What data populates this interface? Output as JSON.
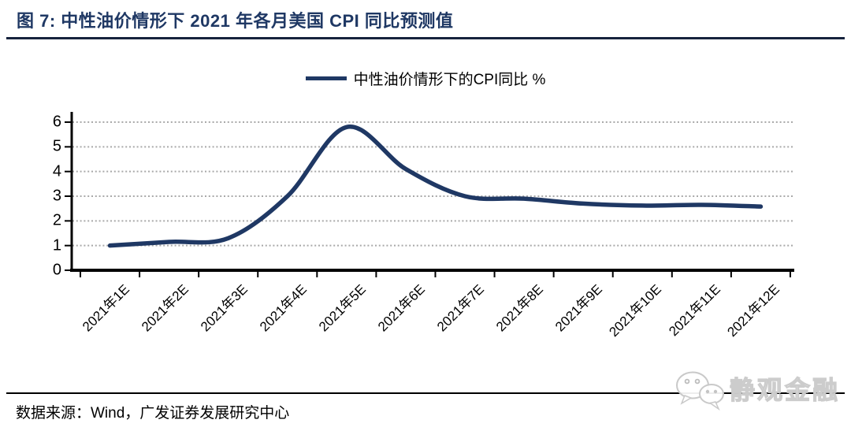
{
  "header": {
    "title": "图 7:  中性油价情形下 2021 年各月美国 CPI 同比预测值"
  },
  "chart_data": {
    "type": "line",
    "title": "中性油价情形下 2021 年各月美国 CPI 同比预测值",
    "legend": "中性油价情形下的CPI同比 %",
    "legend_position": "top-center",
    "line_smooth": true,
    "grid": "horizontal-dotted",
    "categories": [
      "2021年1E",
      "2021年2E",
      "2021年3E",
      "2021年4E",
      "2021年5E",
      "2021年6E",
      "2021年7E",
      "2021年8E",
      "2021年9E",
      "2021年10E",
      "2021年11E",
      "2021年12E"
    ],
    "series": [
      {
        "name": "中性油价情形下的CPI同比 %",
        "values": [
          1.0,
          1.15,
          1.3,
          3.0,
          5.8,
          4.1,
          3.0,
          2.9,
          2.7,
          2.62,
          2.65,
          2.58
        ],
        "color": "#1f3864"
      }
    ],
    "xlabel": "",
    "ylabel": "",
    "ylim": [
      0,
      6
    ],
    "yticks": [
      0,
      1,
      2,
      3,
      4,
      5,
      6
    ]
  },
  "footer": {
    "source": "数据来源：Wind，广发证券发展研究中心",
    "watermark": "静观金融"
  },
  "colors": {
    "accent": "#1f3864",
    "title": "#1f3864",
    "gridline": "#a9a9a9",
    "axis": "#000000",
    "watermark_gray": "#c6c6c6"
  }
}
